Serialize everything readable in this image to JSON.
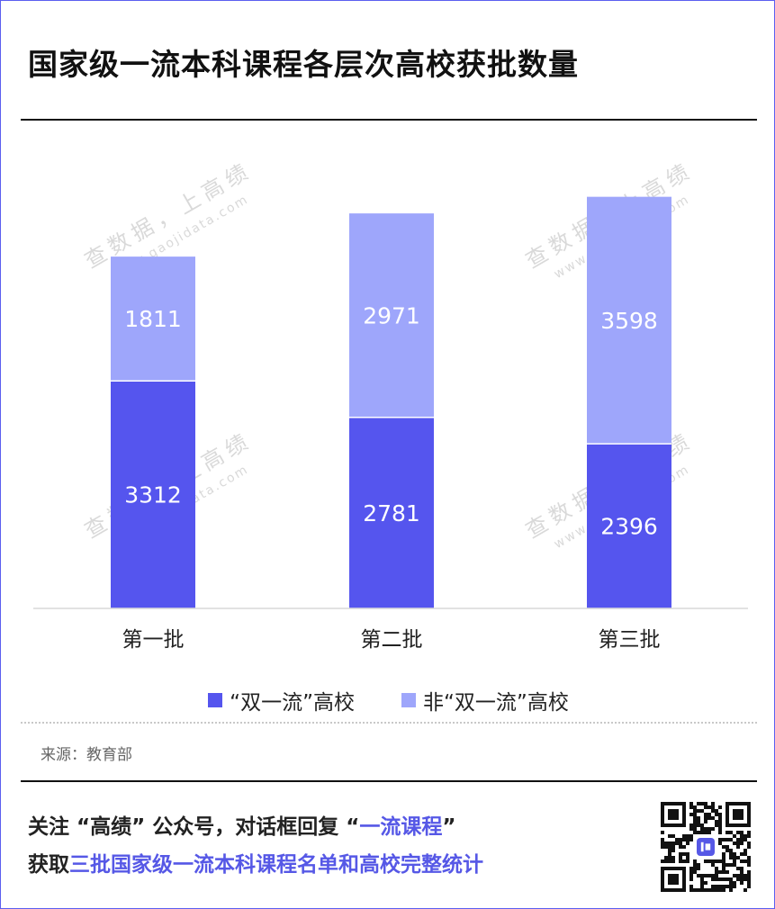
{
  "title": "国家级一流本科课程各层次高校获批数量",
  "chart_data": {
    "type": "bar",
    "stacked": true,
    "categories": [
      "第一批",
      "第二批",
      "第三批"
    ],
    "series": [
      {
        "name": "“双一流”高校",
        "values": [
          3312,
          2781,
          2396
        ],
        "color": "#5555ee"
      },
      {
        "name": "非“双一流”高校",
        "values": [
          1811,
          2971,
          3598
        ],
        "color": "#9ea6fb"
      }
    ],
    "ylim": [
      0,
      6000
    ],
    "grid": false,
    "legend_position": "bottom",
    "label_color": "#ffffff"
  },
  "watermark": {
    "line1": "查数据，上高绩",
    "line2": "www.gaojidata.com"
  },
  "source": "来源：教育部",
  "promo": {
    "line1_prefix": "关注 “高绩” 公众号，对话框回复 “",
    "line1_keyword": "一流课程",
    "line1_suffix": "”",
    "line2_prefix": "获取",
    "line2_highlight": "三批国家级一流本科课程名单和高校完整统计"
  },
  "qr_icon": "qr-code-icon",
  "colors": {
    "accent": "#5658e6",
    "border": "#5b5ef0",
    "text": "#111111"
  }
}
